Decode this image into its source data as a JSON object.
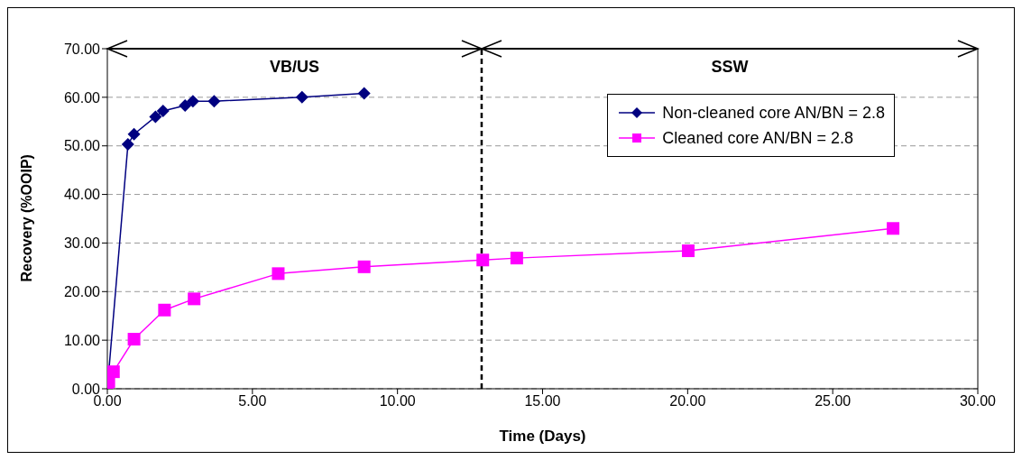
{
  "chart_data": {
    "type": "line",
    "xlabel": "Time (Days)",
    "ylabel": "Recovery (%OOIP)",
    "series": [
      {
        "name": "Non-cleaned core AN/BN = 2.8",
        "color": "#000080",
        "marker": "diamond",
        "x": [
          0,
          0.71,
          0.92,
          1.66,
          1.92,
          2.68,
          2.95,
          3.68,
          6.71,
          8.85
        ],
        "values": [
          0,
          50.3,
          52.4,
          56.0,
          57.2,
          58.3,
          59.2,
          59.2,
          60.0,
          60.8
        ]
      },
      {
        "name": "Cleaned core AN/BN = 2.8",
        "color": "#ff00ff",
        "marker": "square",
        "x": [
          0,
          0.05,
          0.21,
          0.92,
          1.97,
          2.99,
          5.89,
          8.85,
          12.94,
          14.11,
          20.02,
          27.08
        ],
        "values": [
          0,
          1.5,
          3.5,
          10.2,
          16.2,
          18.5,
          23.7,
          25.1,
          26.5,
          26.9,
          28.4,
          33.0
        ]
      }
    ],
    "xlim": [
      0,
      30
    ],
    "xticks": [
      {
        "value": 0,
        "label": "0.00"
      },
      {
        "value": 5,
        "label": "5.00"
      },
      {
        "value": 10,
        "label": "10.00"
      },
      {
        "value": 15,
        "label": "15.00"
      },
      {
        "value": 20,
        "label": "20.00"
      },
      {
        "value": 25,
        "label": "25.00"
      },
      {
        "value": 30,
        "label": "30.00"
      }
    ],
    "ylim": [
      0,
      70
    ],
    "yticks": [
      {
        "value": 0,
        "label": "0.00"
      },
      {
        "value": 10,
        "label": "10.00"
      },
      {
        "value": 20,
        "label": "20.00"
      },
      {
        "value": 30,
        "label": "30.00"
      },
      {
        "value": 40,
        "label": "40.00"
      },
      {
        "value": 50,
        "label": "50.00"
      },
      {
        "value": 60,
        "label": "60.00"
      },
      {
        "value": 70,
        "label": "70.00"
      }
    ],
    "ref_lines": [
      {
        "axis": "x",
        "value": 12.9,
        "color": "#000000",
        "line_style": "dashed"
      }
    ],
    "annotations": [
      "VB/US",
      "SSW"
    ],
    "grid": "y",
    "legend": "top right"
  }
}
